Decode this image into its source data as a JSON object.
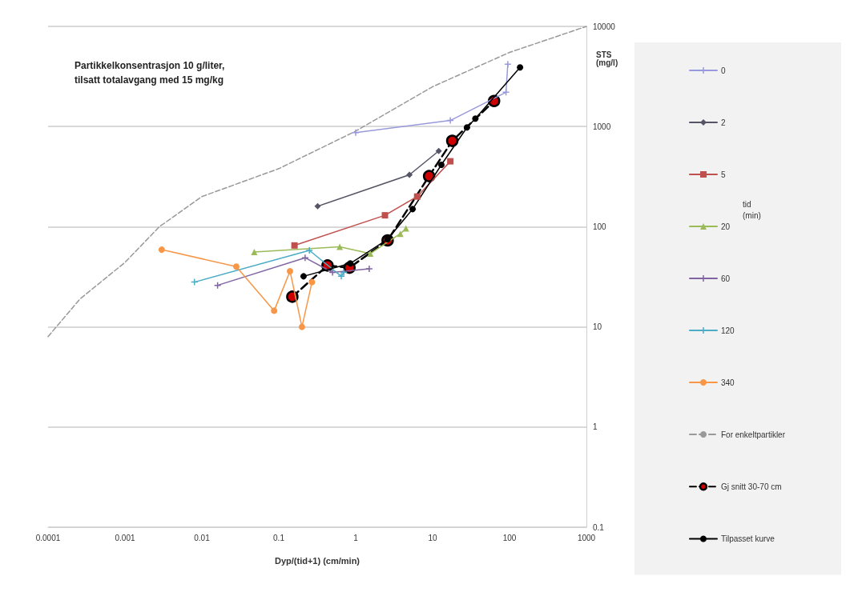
{
  "chart_data": {
    "type": "line",
    "xlabel": "Dyp/(tid+1) (cm/min)",
    "ylabel": "STS (mg/l)",
    "legend_title": "tid (min)",
    "annotations": [
      "Partikkelkonsentrasjon 10 g/liter,",
      "tilsatt totalavgang med 15 mg/kg"
    ],
    "log": "xy",
    "grid": "y",
    "legend": "right",
    "line_style": "solid",
    "xlim": [
      0.0001,
      1000
    ],
    "xticks": [
      0.0001,
      0.001,
      0.01,
      0.1,
      1,
      10,
      100,
      1000
    ],
    "ylim": [
      0.1,
      10000
    ],
    "yticks": [
      0.1,
      1,
      10,
      100,
      1000,
      10000
    ],
    "series": [
      {
        "name": "0",
        "color": "#9999dd",
        "marker": "cross",
        "x": [
          1,
          17,
          90,
          95
        ],
        "values": [
          870,
          1150,
          2200,
          4200
        ]
      },
      {
        "name": "2",
        "color": "#555566",
        "marker": "diamond",
        "x": [
          0.32,
          5,
          12
        ],
        "values": [
          160,
          330,
          570
        ]
      },
      {
        "name": "5",
        "color": "#c0504d",
        "marker": "square",
        "x": [
          0.16,
          2.4,
          6.3,
          17
        ],
        "values": [
          65,
          130,
          200,
          450
        ]
      },
      {
        "name": "20",
        "color": "#9bbb59",
        "marker": "triangle",
        "x": [
          0.048,
          0.62,
          1.55,
          3.8,
          4.5
        ],
        "values": [
          56,
          63,
          54,
          85,
          96
        ]
      },
      {
        "name": "60",
        "color": "#8064a2",
        "marker": "cross",
        "x": [
          0.016,
          0.22,
          0.5,
          1.5
        ],
        "values": [
          26,
          49,
          35,
          38
        ]
      },
      {
        "name": "120",
        "color": "#4bacc6",
        "marker": "cross",
        "x": [
          0.008,
          0.25,
          0.65,
          0.7
        ],
        "values": [
          28,
          58,
          32,
          35
        ]
      },
      {
        "name": "340",
        "color": "#f79646",
        "marker": "circle",
        "x": [
          0.003,
          0.028,
          0.087,
          0.14,
          0.2,
          0.27
        ],
        "values": [
          59,
          40,
          14.5,
          36,
          10,
          28
        ]
      },
      {
        "name": "For enkeltpartikler",
        "color": "#999999",
        "marker": "none",
        "line_style": "dashed",
        "x": [
          0.0001,
          0.00026,
          0.001,
          0.0028,
          0.01,
          0.1,
          1,
          10,
          100,
          1000
        ],
        "values": [
          8,
          19,
          44,
          100,
          200,
          380,
          900,
          2500,
          5500,
          10000
        ]
      },
      {
        "name": "Gj snitt 30-70 cm",
        "color": "#000000",
        "colors": [
          "#cc0000",
          "#cc0000",
          "#cc0000",
          "#cc0000",
          "#cc0000",
          "#cc0000",
          "#cc0000"
        ],
        "marker": "circle",
        "line_style": "dashed",
        "x": [
          0.15,
          0.43,
          0.83,
          2.6,
          9,
          18,
          63
        ],
        "values": [
          20,
          41,
          39,
          73,
          320,
          720,
          1800
        ]
      },
      {
        "name": "Tilpasset kurve",
        "color": "#000000",
        "marker": "circle",
        "x": [
          0.21,
          0.85,
          2.6,
          5.5,
          13,
          28,
          36,
          137
        ],
        "values": [
          32,
          43,
          75,
          150,
          415,
          980,
          1200,
          3900
        ]
      }
    ]
  }
}
